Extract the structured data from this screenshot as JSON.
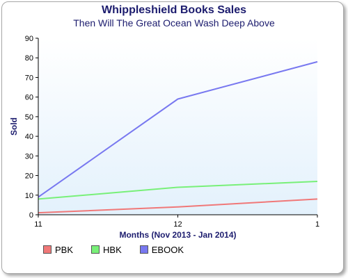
{
  "chart_data": {
    "type": "line",
    "title": "Whippleshield Books Sales",
    "subtitle": "Then Will The Great Ocean Wash Deep Above",
    "xlabel": "Months (Nov 2013 - Jan 2014)",
    "ylabel": "Sold",
    "categories": [
      "11",
      "12",
      "1"
    ],
    "ylim": [
      0,
      90
    ],
    "yticks": [
      0,
      10,
      20,
      30,
      40,
      50,
      60,
      70,
      80,
      90
    ],
    "grid": false,
    "legend_position": "bottom-left",
    "series": [
      {
        "name": "PBK",
        "color": "#f07878",
        "values": [
          1,
          4,
          8
        ]
      },
      {
        "name": "HBK",
        "color": "#78f078",
        "values": [
          8,
          14,
          17
        ]
      },
      {
        "name": "EBOOK",
        "color": "#7878f0",
        "values": [
          9,
          59,
          78
        ]
      }
    ]
  },
  "colors": {
    "plot_top": "#ffffff",
    "plot_bottom": "#e3f1fc",
    "title": "#1c1c6e"
  }
}
